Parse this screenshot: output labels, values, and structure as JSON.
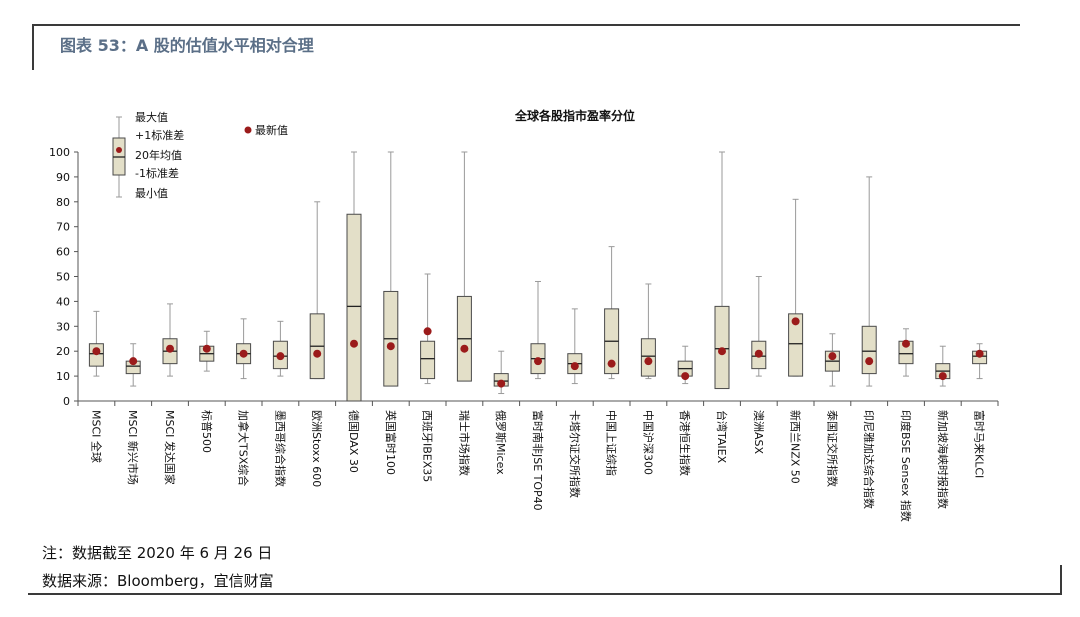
{
  "header": {
    "title": "图表 53：A 股的估值水平相对合理"
  },
  "chart_data": {
    "type": "box",
    "title": "全球各股指市盈率分位",
    "ylim": [
      0,
      100
    ],
    "yticks": [
      0,
      10,
      20,
      30,
      40,
      50,
      60,
      70,
      80,
      90,
      100
    ],
    "legend": {
      "box_labels": [
        "最大值",
        "+1标准差",
        "20年均值",
        "-1标准差",
        "最小值"
      ],
      "marker_label": "最新值"
    },
    "categories": [
      "MSCI 全球",
      "MSCI 新兴市场",
      "MSCI 发达国家",
      "标普500",
      "加拿大TSX综合",
      "墨西哥综合指数",
      "欧洲Stoxx 600",
      "德国DAX 30",
      "英国富时100",
      "西班牙IBEX35",
      "瑞士市场指数",
      "俄罗斯Micex",
      "富时南非JSE TOP40",
      "卡塔尔证交所指数",
      "中国上证综指",
      "中国沪深300",
      "香港恒生指数",
      "台湾TAIEX",
      "澳洲ASX",
      "新西兰NZX 50",
      "泰国证交所指数",
      "印尼雅加达综合指数",
      "印度BSE Sensex 指数",
      "新加坡海峡时报指数",
      "富时马来KLCI"
    ],
    "series": [
      {
        "name": "最大值",
        "values": [
          36,
          23,
          39,
          28,
          33,
          32,
          80,
          100,
          100,
          51,
          100,
          20,
          48,
          37,
          62,
          47,
          22,
          100,
          50,
          81,
          27,
          90,
          29,
          22,
          23
        ]
      },
      {
        "name": "+1标准差",
        "values": [
          23,
          16,
          25,
          22,
          23,
          24,
          35,
          75,
          44,
          24,
          42,
          11,
          23,
          19,
          37,
          25,
          16,
          38,
          24,
          35,
          20,
          30,
          24,
          15,
          20
        ]
      },
      {
        "name": "20年均值",
        "values": [
          19,
          14,
          20,
          19,
          19,
          18,
          22,
          38,
          25,
          17,
          25,
          8,
          17,
          15,
          24,
          18,
          13,
          21,
          18,
          23,
          16,
          20,
          19,
          12,
          18
        ]
      },
      {
        "name": "-1标准差",
        "values": [
          14,
          11,
          15,
          16,
          15,
          13,
          9,
          0,
          6,
          9,
          8,
          6,
          11,
          11,
          11,
          10,
          10,
          5,
          13,
          10,
          12,
          11,
          15,
          9,
          15
        ]
      },
      {
        "name": "最小值",
        "values": [
          10,
          6,
          10,
          12,
          9,
          10,
          9,
          8,
          9,
          7,
          13,
          3,
          9,
          7,
          9,
          9,
          7,
          9,
          10,
          10,
          6,
          6,
          10,
          6,
          9
        ]
      },
      {
        "name": "最新值",
        "values": [
          20,
          16,
          21,
          21,
          19,
          18,
          19,
          23,
          22,
          28,
          21,
          7,
          16,
          14,
          15,
          16,
          10,
          20,
          19,
          32,
          18,
          16,
          23,
          10,
          19
        ]
      }
    ]
  },
  "footer": {
    "note": "注：数据截至 2020 年 6 月 26 日",
    "source": "数据来源：Bloomberg，宜信财富"
  },
  "colors": {
    "box_fill": "#e3dfc8",
    "box_stroke": "#4a4a4a",
    "whisker": "#9a9a9a",
    "marker": "#9b1b1b",
    "title": "#5b6f87"
  }
}
